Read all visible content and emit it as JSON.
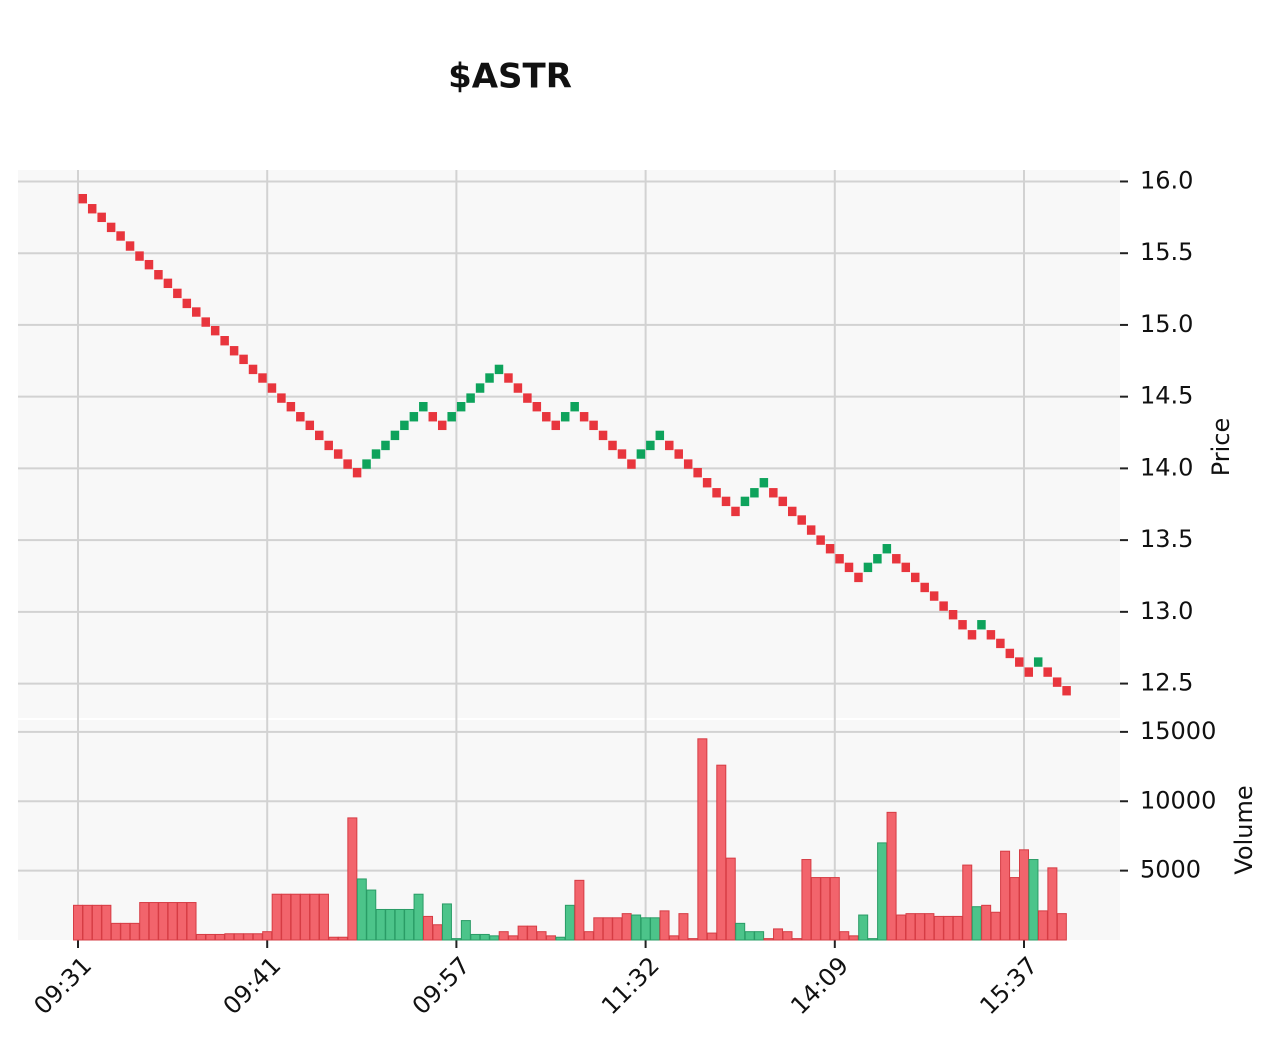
{
  "chart_data": [
    {
      "type": "renko",
      "title": "$ASTR",
      "ylabel": "Price",
      "up_color": "#0ea35c",
      "down_color": "#e8353d",
      "series": [
        {
          "name": "Price",
          "values": [
            15.88,
            15.81,
            15.75,
            15.68,
            15.62,
            15.55,
            15.48,
            15.42,
            15.35,
            15.29,
            15.22,
            15.15,
            15.09,
            15.02,
            14.96,
            14.89,
            14.82,
            14.76,
            14.69,
            14.63,
            14.56,
            14.49,
            14.43,
            14.36,
            14.3,
            14.23,
            14.16,
            14.1,
            14.03,
            13.97,
            14.03,
            14.1,
            14.16,
            14.23,
            14.3,
            14.36,
            14.43,
            14.36,
            14.3,
            14.36,
            14.43,
            14.49,
            14.56,
            14.63,
            14.69,
            14.63,
            14.56,
            14.49,
            14.43,
            14.36,
            14.3,
            14.36,
            14.43,
            14.36,
            14.3,
            14.23,
            14.16,
            14.1,
            14.03,
            14.1,
            14.16,
            14.23,
            14.16,
            14.1,
            14.03,
            13.97,
            13.9,
            13.83,
            13.77,
            13.7,
            13.77,
            13.83,
            13.9,
            13.83,
            13.77,
            13.7,
            13.64,
            13.57,
            13.5,
            13.44,
            13.37,
            13.31,
            13.24,
            13.31,
            13.37,
            13.44,
            13.37,
            13.31,
            13.24,
            13.17,
            13.11,
            13.04,
            12.98,
            12.91,
            12.84,
            12.91,
            12.84,
            12.78,
            12.71,
            12.65,
            12.58,
            12.65,
            12.58,
            12.51,
            12.45
          ]
        }
      ],
      "ylim": [
        12.26,
        16.08
      ],
      "yticks": [
        12.5,
        {
          "value": 13,
          "label": "13.0"
        },
        13.5,
        {
          "value": 14,
          "label": "14.0"
        },
        14.5,
        {
          "value": 15,
          "label": "15.0"
        },
        15.5,
        {
          "value": 16,
          "label": "16.0"
        }
      ],
      "grid": true
    },
    {
      "type": "bar",
      "ylabel": "Volume",
      "up_color": "#4cc48a",
      "down_color": "#f2646c",
      "values": [
        2500,
        2500,
        2500,
        2500,
        1200,
        1200,
        1200,
        2700,
        2700,
        2700,
        2700,
        2700,
        2700,
        400,
        400,
        400,
        450,
        450,
        450,
        450,
        600,
        3300,
        3300,
        3300,
        3300,
        3300,
        3300,
        200,
        200,
        8800,
        4400,
        3600,
        2200,
        2200,
        2200,
        2200,
        3300,
        1700,
        1100,
        2600,
        100,
        1400,
        400,
        400,
        300,
        600,
        300,
        1000,
        1000,
        600,
        300,
        200,
        2500,
        4300,
        600,
        1600,
        1600,
        1600,
        1900,
        1800,
        1600,
        1600,
        2100,
        300,
        1900,
        100,
        14500,
        500,
        12600,
        5900,
        1200,
        600,
        600,
        100,
        800,
        600,
        100,
        5800,
        4500,
        4500,
        4500,
        600,
        300,
        1800,
        100,
        7000,
        9200,
        1800,
        1900,
        1900,
        1900,
        1700,
        1700,
        1700,
        5400,
        2400,
        2500,
        2000,
        6400,
        4500,
        6500,
        5800,
        2100,
        5200,
        1900
      ],
      "ylim": [
        0,
        16000
      ],
      "yticks": [
        5000,
        10000,
        15000
      ],
      "xticks": [
        {
          "value": 0,
          "label": "09:31"
        },
        {
          "value": 20,
          "label": "09:41"
        },
        {
          "value": 40,
          "label": "09:57"
        },
        {
          "value": 60,
          "label": "11:32"
        },
        {
          "value": 80,
          "label": "14:09"
        },
        {
          "value": 100,
          "label": "15:37"
        }
      ],
      "grid": true
    }
  ]
}
